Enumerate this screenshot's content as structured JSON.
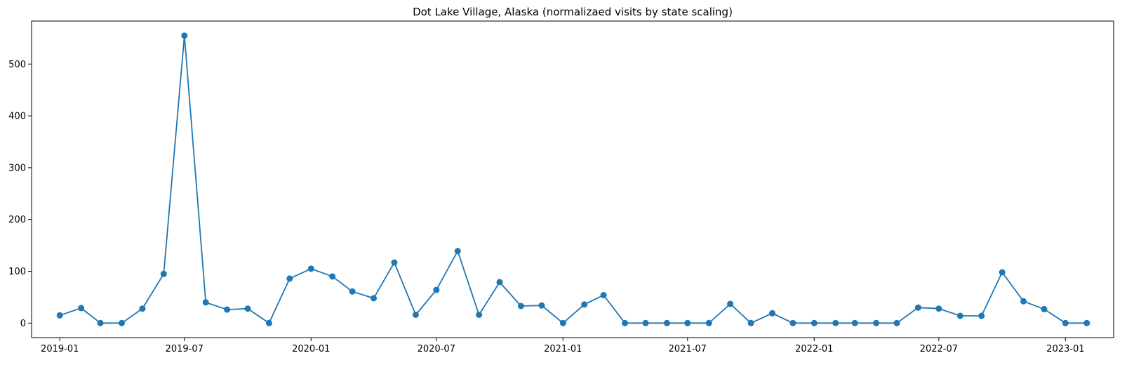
{
  "chart_data": {
    "type": "line",
    "title": "Dot Lake Village, Alaska (normalizaed visits by state scaling)",
    "xlabel": "",
    "ylabel": "",
    "x_ticks": [
      "2019-01",
      "2019-07",
      "2020-01",
      "2020-07",
      "2021-01",
      "2021-07",
      "2022-01",
      "2022-07",
      "2023-01"
    ],
    "y_ticks": [
      0,
      100,
      200,
      300,
      400,
      500
    ],
    "ylim": [
      -28,
      583
    ],
    "xlim": [
      "2018-11-21",
      "2023-03-12"
    ],
    "grid": false,
    "line_color": "#1f77b4",
    "series": [
      {
        "x": [
          "2019-01-01",
          "2019-02-01",
          "2019-03-01",
          "2019-04-01",
          "2019-05-01",
          "2019-06-01",
          "2019-07-01",
          "2019-08-01",
          "2019-09-01",
          "2019-10-01",
          "2019-11-01",
          "2019-12-01",
          "2020-01-01",
          "2020-02-01",
          "2020-03-01",
          "2020-04-01",
          "2020-05-01",
          "2020-06-01",
          "2020-07-01",
          "2020-08-01",
          "2020-09-01",
          "2020-10-01",
          "2020-11-01",
          "2020-12-01",
          "2021-01-01",
          "2021-02-01",
          "2021-03-01",
          "2021-04-01",
          "2021-05-01",
          "2021-06-01",
          "2021-07-01",
          "2021-08-01",
          "2021-09-01",
          "2021-10-01",
          "2021-11-01",
          "2021-12-01",
          "2022-01-01",
          "2022-02-01",
          "2022-03-01",
          "2022-04-01",
          "2022-05-01",
          "2022-06-01",
          "2022-07-01",
          "2022-08-01",
          "2022-09-01",
          "2022-10-01",
          "2022-11-01",
          "2022-12-01",
          "2023-01-01",
          "2023-02-01"
        ],
        "values": [
          15,
          29,
          0,
          0,
          28,
          95,
          555,
          40,
          26,
          28,
          0,
          86,
          105,
          90,
          61,
          48,
          117,
          16,
          64,
          139,
          16,
          79,
          33,
          34,
          0,
          36,
          54,
          0,
          0,
          0,
          0,
          0,
          37,
          0,
          19,
          0,
          0,
          0,
          0,
          0,
          0,
          30,
          28,
          14,
          14,
          98,
          42,
          27,
          0,
          0
        ]
      }
    ]
  }
}
